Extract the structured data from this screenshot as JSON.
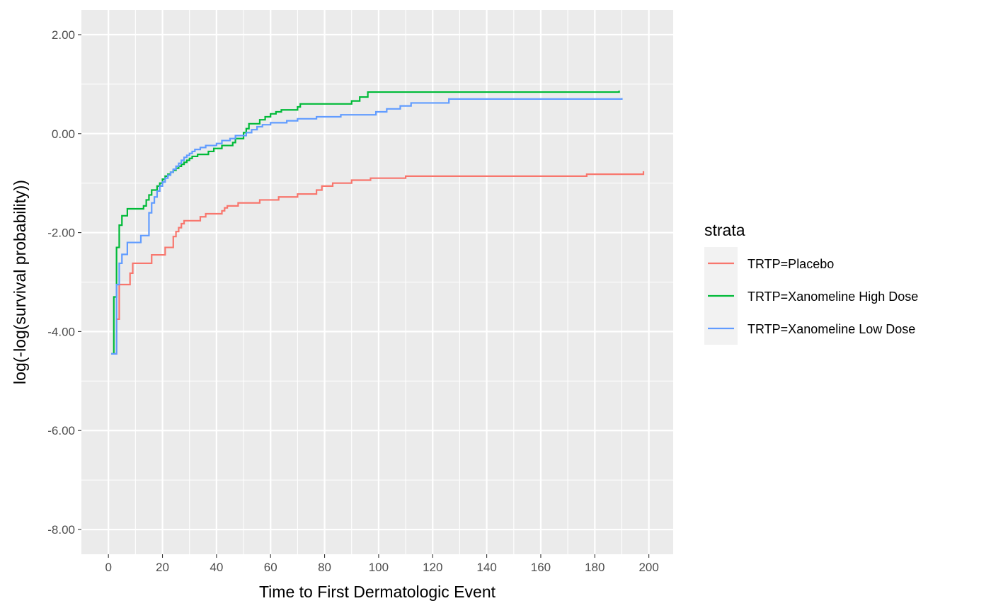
{
  "chart_data": {
    "type": "line",
    "step": true,
    "xlabel": "Time to First Dermatologic Event",
    "ylabel": "log(-log(survival probability))",
    "xlim": [
      -10,
      209
    ],
    "ylim": [
      -8.5,
      2.5
    ],
    "x_ticks": [
      0,
      20,
      40,
      60,
      80,
      100,
      120,
      140,
      160,
      180,
      200
    ],
    "x_tick_labels": [
      "0",
      "20",
      "40",
      "60",
      "80",
      "100",
      "120",
      "140",
      "160",
      "180",
      "200"
    ],
    "y_ticks": [
      2,
      0,
      -2,
      -4,
      -6,
      -8
    ],
    "y_tick_labels": [
      "2.00",
      "0.00",
      "-2.00",
      "-4.00",
      "-6.00",
      "-8.00"
    ],
    "grid": true,
    "legend": {
      "title": "strata",
      "position": "right",
      "entries": [
        "TRTP=Placebo",
        "TRTP=Xanomeline High Dose",
        "TRTP=Xanomeline Low Dose"
      ]
    },
    "series": [
      {
        "name": "TRTP=Placebo",
        "color": "#F8766D",
        "x": [
          2,
          3,
          4,
          7,
          8,
          9,
          16,
          21,
          24,
          25,
          26,
          27,
          28,
          34,
          36,
          42,
          43,
          44,
          48,
          56,
          63,
          70,
          77,
          79,
          83,
          90,
          97,
          110,
          177,
          198
        ],
        "y": [
          -4.45,
          -3.75,
          -3.05,
          -3.05,
          -2.82,
          -2.62,
          -2.45,
          -2.3,
          -2.08,
          -1.98,
          -1.9,
          -1.82,
          -1.76,
          -1.68,
          -1.62,
          -1.56,
          -1.5,
          -1.46,
          -1.4,
          -1.34,
          -1.28,
          -1.22,
          -1.14,
          -1.06,
          -1.0,
          -0.94,
          -0.9,
          -0.86,
          -0.82,
          -0.76
        ]
      },
      {
        "name": "TRTP=Xanomeline High Dose",
        "color": "#00BA38",
        "x": [
          1,
          2,
          3,
          4,
          5,
          7,
          13,
          14,
          15,
          16,
          18,
          19,
          20,
          21,
          22,
          23,
          24,
          25,
          26,
          27,
          28,
          29,
          30,
          31,
          33,
          37,
          39,
          42,
          46,
          47,
          50,
          51,
          52,
          56,
          58,
          60,
          62,
          64,
          70,
          71,
          90,
          93,
          96,
          189
        ],
        "y": [
          -4.45,
          -3.3,
          -2.3,
          -1.85,
          -1.66,
          -1.52,
          -1.46,
          -1.34,
          -1.24,
          -1.14,
          -1.06,
          -1.0,
          -0.92,
          -0.86,
          -0.82,
          -0.78,
          -0.74,
          -0.7,
          -0.66,
          -0.62,
          -0.58,
          -0.54,
          -0.5,
          -0.46,
          -0.42,
          -0.36,
          -0.3,
          -0.24,
          -0.18,
          -0.1,
          0.02,
          0.1,
          0.2,
          0.28,
          0.34,
          0.4,
          0.44,
          0.48,
          0.54,
          0.6,
          0.66,
          0.74,
          0.84,
          0.87
        ]
      },
      {
        "name": "TRTP=Xanomeline Low Dose",
        "color": "#619CFF",
        "x": [
          1,
          3,
          4,
          5,
          7,
          12,
          15,
          16,
          17,
          18,
          19,
          20,
          21,
          22,
          23,
          24,
          25,
          26,
          27,
          28,
          29,
          30,
          31,
          32,
          34,
          36,
          40,
          42,
          45,
          47,
          51,
          53,
          55,
          57,
          60,
          66,
          70,
          77,
          86,
          99,
          103,
          108,
          112,
          126,
          190
        ],
        "y": [
          -4.45,
          -3.05,
          -2.62,
          -2.44,
          -2.2,
          -2.06,
          -1.6,
          -1.4,
          -1.28,
          -1.16,
          -1.06,
          -0.98,
          -0.9,
          -0.84,
          -0.78,
          -0.72,
          -0.66,
          -0.6,
          -0.54,
          -0.48,
          -0.44,
          -0.4,
          -0.36,
          -0.32,
          -0.28,
          -0.24,
          -0.2,
          -0.14,
          -0.1,
          -0.04,
          0.02,
          0.08,
          0.14,
          0.18,
          0.22,
          0.26,
          0.3,
          0.34,
          0.38,
          0.44,
          0.5,
          0.56,
          0.62,
          0.7,
          0.72
        ]
      }
    ]
  }
}
